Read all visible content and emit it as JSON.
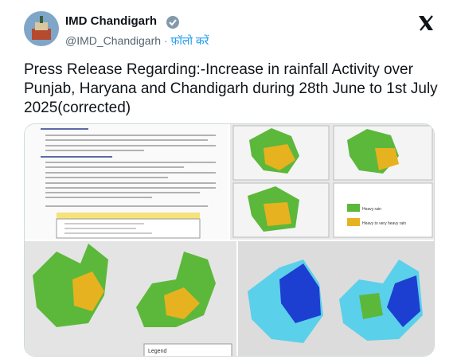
{
  "header": {
    "name": "IMD Chandigarh",
    "handle": "@IMD_Chandigarh",
    "follow": "· फ़ॉलो करें"
  },
  "text_lines": [
    "Press Release Regarding:-Increase in rainfall Activity over",
    "Punjab, Haryana and Chandigarh during 28th June to 1st July",
    "2025(corrected)"
  ],
  "media": {
    "legend_items": [
      "Heavy rain",
      "Heavy to very heavy rain"
    ],
    "legend_title": "Legend"
  }
}
